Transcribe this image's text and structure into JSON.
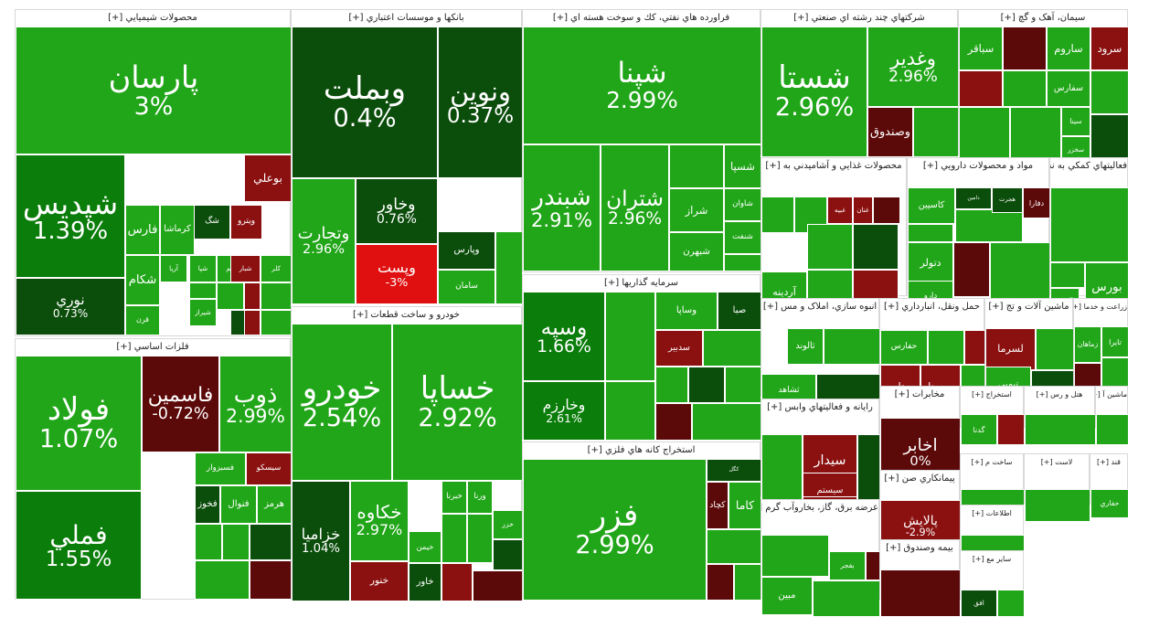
{
  "colors": {
    "up_strong": "#0a7d0a",
    "up": "#21a619",
    "up_light": "#3fb62e",
    "dark_up": "#0b4d0b",
    "down": "#8b1010",
    "down_strong": "#e01010",
    "dark_down": "#5c0909",
    "filler": "#1f9e1a"
  },
  "chart_data": {
    "type": "treemap",
    "sectors": [
      {
        "name": "محصولات شيميايي [+]",
        "tiles": [
          {
            "name": "پارسان",
            "value": "3%",
            "color": "up"
          },
          {
            "name": "شپديس",
            "value": "1.39%",
            "color": "up_strong"
          },
          {
            "name": "نوري",
            "value": "0.73%",
            "color": "dark_up"
          },
          {
            "name": "بوعلي",
            "value": "",
            "color": "down"
          },
          {
            "name": "فارس",
            "value": "",
            "color": "up"
          },
          {
            "name": "کرماشا",
            "value": "",
            "color": "up"
          },
          {
            "name": "شگ",
            "value": "",
            "color": "dark_up"
          },
          {
            "name": "ويترو",
            "value": "",
            "color": "down"
          },
          {
            "name": "شکام",
            "value": "",
            "color": "up"
          },
          {
            "name": "آريا",
            "value": "",
            "color": "up"
          },
          {
            "name": "شپا",
            "value": "",
            "color": "up"
          },
          {
            "name": "شيراز",
            "value": "",
            "color": "up"
          },
          {
            "name": "قرن",
            "value": "",
            "color": "up"
          },
          {
            "name": "جم",
            "value": "",
            "color": "up"
          },
          {
            "name": "کلر",
            "value": "",
            "color": "up"
          },
          {
            "name": "شبار",
            "value": "",
            "color": "down"
          }
        ]
      },
      {
        "name": "فلزات اساسي [+]",
        "tiles": [
          {
            "name": "فولاد",
            "value": "1.07%",
            "color": "up"
          },
          {
            "name": "فملي",
            "value": "1.55%",
            "color": "up_strong"
          },
          {
            "name": "فاسمين",
            "value": "-0.72%",
            "color": "dark_down"
          },
          {
            "name": "ذوب",
            "value": "2.99%",
            "color": "up"
          },
          {
            "name": "فسبزوار",
            "value": "",
            "color": "up"
          },
          {
            "name": "سيسکو",
            "value": "",
            "color": "down"
          },
          {
            "name": "فخوز",
            "value": "",
            "color": "dark_up"
          },
          {
            "name": "فنوال",
            "value": "",
            "color": "up"
          },
          {
            "name": "هرمز",
            "value": "",
            "color": "up"
          }
        ]
      },
      {
        "name": "بانکها و موسسات اعتباري [+]",
        "tiles": [
          {
            "name": "وبملت",
            "value": "0.4%",
            "color": "dark_up"
          },
          {
            "name": "ونوين",
            "value": "0.37%",
            "color": "dark_up"
          },
          {
            "name": "وتجارت",
            "value": "2.96%",
            "color": "up"
          },
          {
            "name": "وخاور",
            "value": "0.76%",
            "color": "dark_up"
          },
          {
            "name": "وپست",
            "value": "-3%",
            "color": "down_strong"
          },
          {
            "name": "وپارس",
            "value": "",
            "color": "dark_up"
          },
          {
            "name": "سامان",
            "value": "",
            "color": "up"
          }
        ]
      },
      {
        "name": "خودرو و ساخت قطعات [+]",
        "tiles": [
          {
            "name": "خودرو",
            "value": "2.54%",
            "color": "up"
          },
          {
            "name": "خساپا",
            "value": "2.92%",
            "color": "up"
          },
          {
            "name": "خزاميا",
            "value": "1.04%",
            "color": "dark_up"
          },
          {
            "name": "خكاوه",
            "value": "2.97%",
            "color": "up"
          },
          {
            "name": "خنور",
            "value": "",
            "color": "down"
          },
          {
            "name": "خاور",
            "value": "",
            "color": "dark_up"
          },
          {
            "name": "خيمن",
            "value": "",
            "color": "up"
          },
          {
            "name": "خبرنا",
            "value": "",
            "color": "up"
          },
          {
            "name": "خزر",
            "value": "",
            "color": "up"
          },
          {
            "name": "ورنا",
            "value": "",
            "color": "up"
          }
        ]
      },
      {
        "name": "فراورده هاي نفتي، كك و سوخت هسته اي [+]",
        "tiles": [
          {
            "name": "شپنا",
            "value": "2.99%",
            "color": "up"
          },
          {
            "name": "شبندر",
            "value": "2.91%",
            "color": "up"
          },
          {
            "name": "شتران",
            "value": "2.96%",
            "color": "up"
          },
          {
            "name": "شسپا",
            "value": "",
            "color": "up"
          },
          {
            "name": "شراز",
            "value": "",
            "color": "up"
          },
          {
            "name": "شاوان",
            "value": "",
            "color": "up"
          },
          {
            "name": "شنفت",
            "value": "",
            "color": "up"
          },
          {
            "name": "شبهرن",
            "value": "",
            "color": "up"
          }
        ]
      },
      {
        "name": "سرمايه گذاريها [+]",
        "tiles": [
          {
            "name": "وسپه",
            "value": "1.66%",
            "color": "up_strong"
          },
          {
            "name": "وخارزم",
            "value": "2.61%",
            "color": "up_strong"
          },
          {
            "name": "صبا",
            "value": "",
            "color": "dark_up"
          },
          {
            "name": "وساپا",
            "value": "",
            "color": "up"
          },
          {
            "name": "سدبير",
            "value": "",
            "color": "down"
          }
        ]
      },
      {
        "name": "استخراج كانه هاي فلزي [+]",
        "tiles": [
          {
            "name": "فزر",
            "value": "2.99%",
            "color": "up"
          },
          {
            "name": "کگل",
            "value": "",
            "color": "dark_up"
          },
          {
            "name": "کچاد",
            "value": "",
            "color": "dark_down"
          },
          {
            "name": "کاما",
            "value": "",
            "color": "up"
          }
        ]
      },
      {
        "name": "شرکتهاي چند رشته اي صنعتي [+]",
        "tiles": [
          {
            "name": "شستا",
            "value": "2.96%",
            "color": "up"
          },
          {
            "name": "وغدير",
            "value": "2.96%",
            "color": "up"
          },
          {
            "name": "وصندوق",
            "value": "",
            "color": "dark_down"
          }
        ]
      },
      {
        "name": "سيمان، آهک و گچ [+]",
        "tiles": [
          {
            "name": "سباقر",
            "value": "",
            "color": "up"
          },
          {
            "name": "ساروم",
            "value": "",
            "color": "up"
          },
          {
            "name": "سرود",
            "value": "",
            "color": "down"
          },
          {
            "name": "سفارس",
            "value": "",
            "color": "up"
          },
          {
            "name": "سينا",
            "value": "",
            "color": "up"
          },
          {
            "name": "سخزر",
            "value": "",
            "color": "up"
          }
        ]
      },
      {
        "name": "محصولات غذايي و آشاميدني به [+]",
        "tiles": [
          {
            "name": "غنان",
            "value": "",
            "color": "down"
          },
          {
            "name": "غبيه",
            "value": "",
            "color": "down"
          },
          {
            "name": "آردينه",
            "value": "",
            "color": "up"
          }
        ]
      },
      {
        "name": "مواد و محصولات دارويي [+]",
        "tiles": [
          {
            "name": "کاسپين",
            "value": "",
            "color": "up"
          },
          {
            "name": "دامين",
            "value": "",
            "color": "dark_up"
          },
          {
            "name": "دتولر",
            "value": "",
            "color": "up"
          },
          {
            "name": "دارو",
            "value": "",
            "color": "up"
          },
          {
            "name": "دفارا",
            "value": "",
            "color": "dark_down"
          },
          {
            "name": "هجرت",
            "value": "",
            "color": "dark_up"
          }
        ]
      },
      {
        "name": "فعاليتهاي كمكي به نه [+]",
        "tiles": [
          {
            "name": "اانرژي",
            "value": "",
            "color": "up"
          },
          {
            "name": "بورس",
            "value": "",
            "color": "up"
          }
        ]
      },
      {
        "name": "انبوه سازي، املاک و مس [+]",
        "tiles": [
          {
            "name": "ثالوند",
            "value": "",
            "color": "up"
          },
          {
            "name": "ثشاهد",
            "value": "",
            "color": "up"
          }
        ]
      },
      {
        "name": "حمل ونقل، انبارداري [+]",
        "tiles": [
          {
            "name": "حفارس",
            "value": "",
            "color": "up"
          },
          {
            "name": "حتايد",
            "value": "",
            "color": "down"
          },
          {
            "name": "حسينا",
            "value": "",
            "color": "down"
          }
        ]
      },
      {
        "name": "ماشين آلات و تج [+]",
        "tiles": [
          {
            "name": "لسرما",
            "value": "",
            "color": "down"
          },
          {
            "name": "تيمبي",
            "value": "",
            "color": "up"
          }
        ]
      },
      {
        "name": "زراعت و خدما [+]",
        "tiles": [
          {
            "name": "زماهان",
            "value": "",
            "color": "up"
          },
          {
            "name": "تايرا",
            "value": "",
            "color": "up"
          }
        ]
      },
      {
        "name": "رايانه و فعاليتهاي وابس [+]",
        "tiles": [
          {
            "name": "سيدار",
            "value": "",
            "color": "down"
          },
          {
            "name": "سيستم",
            "value": "",
            "color": "down"
          },
          {
            "name": "ربويا",
            "value": "",
            "color": "down"
          }
        ]
      },
      {
        "name": "مخابرات [+]",
        "tiles": [
          {
            "name": "اخابر",
            "value": "0%",
            "color": "dark_down"
          }
        ]
      },
      {
        "name": "پيمانكاري صن [+]",
        "tiles": [
          {
            "name": "پالايش",
            "value": "-2.9%",
            "color": "down"
          }
        ]
      },
      {
        "name": "عرضه برق، گاز، بخاروآب گرم [+]",
        "tiles": [
          {
            "name": "بفجر",
            "value": "",
            "color": "up"
          },
          {
            "name": "مبين",
            "value": "",
            "color": "up"
          }
        ]
      },
      {
        "name": "بيمه وصندوق [+]",
        "tiles": []
      },
      {
        "name": "استخراج [+]",
        "tiles": [
          {
            "name": "گدنا",
            "value": "",
            "color": "up"
          }
        ]
      },
      {
        "name": "هتل و رس [+]",
        "tiles": []
      },
      {
        "name": "ماشين آ [+]",
        "tiles": []
      },
      {
        "name": "ساخت م [+]",
        "tiles": []
      },
      {
        "name": "لاست [+]",
        "tiles": []
      },
      {
        "name": "قند [+]",
        "tiles": [
          {
            "name": "حفاري",
            "value": "",
            "color": "up"
          }
        ]
      },
      {
        "name": "اطلاعات [+]",
        "tiles": []
      },
      {
        "name": "ساير مع [+]",
        "tiles": [
          {
            "name": "افق",
            "value": "",
            "color": "dark_up"
          }
        ]
      }
    ]
  }
}
